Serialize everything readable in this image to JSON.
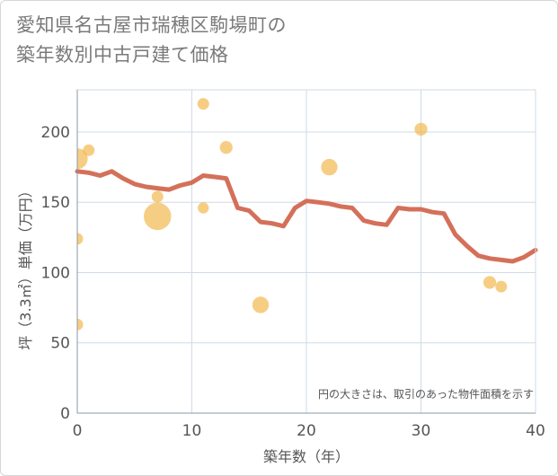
{
  "title_line1": "愛知県名古屋市瑞穂区駒場町の",
  "title_line2": "築年数別中古戸建て価格",
  "chart_data": {
    "type": "scatter",
    "title": "愛知県名古屋市瑞穂区駒場町の築年数別中古戸建て価格",
    "xlabel": "築年数（年）",
    "ylabel": "坪（3.3㎡）単価（万円）",
    "xlim": [
      0,
      40
    ],
    "ylim": [
      0,
      230
    ],
    "xticks": [
      0,
      10,
      20,
      30,
      40
    ],
    "yticks": [
      0,
      50,
      100,
      150,
      200
    ],
    "grid": true,
    "annotation": "円の大きさは、取引のあった物件面積を示す",
    "colors": {
      "bubble": "#f2b94f",
      "line": "#d4705a",
      "grid": "#cfdbe6"
    },
    "bubbles": [
      {
        "x": 0,
        "y": 181,
        "size": 3.2
      },
      {
        "x": 0,
        "y": 124,
        "size": 1.0
      },
      {
        "x": 0,
        "y": 63,
        "size": 1.0
      },
      {
        "x": 1,
        "y": 187,
        "size": 1.0
      },
      {
        "x": 7,
        "y": 140,
        "size": 5.5
      },
      {
        "x": 7,
        "y": 154,
        "size": 1.0
      },
      {
        "x": 11,
        "y": 220,
        "size": 1.0
      },
      {
        "x": 11,
        "y": 146,
        "size": 0.9
      },
      {
        "x": 13,
        "y": 189,
        "size": 1.2
      },
      {
        "x": 16,
        "y": 77,
        "size": 2.0
      },
      {
        "x": 22,
        "y": 175,
        "size": 2.0
      },
      {
        "x": 30,
        "y": 202,
        "size": 1.2
      },
      {
        "x": 36,
        "y": 93,
        "size": 1.2
      },
      {
        "x": 37,
        "y": 90,
        "size": 1.0
      }
    ],
    "trend": {
      "x": [
        0,
        1,
        2,
        3,
        4,
        5,
        6,
        7,
        8,
        9,
        10,
        11,
        12,
        13,
        14,
        15,
        16,
        17,
        18,
        19,
        20,
        21,
        22,
        23,
        24,
        25,
        26,
        27,
        28,
        29,
        30,
        31,
        32,
        33,
        34,
        35,
        36,
        37,
        38,
        39,
        40
      ],
      "y": [
        172,
        171,
        169,
        172,
        167,
        163,
        161,
        160,
        159,
        162,
        164,
        169,
        168,
        167,
        146,
        144,
        136,
        135,
        133,
        146,
        151,
        150,
        149,
        147,
        146,
        137,
        135,
        134,
        146,
        145,
        145,
        143,
        142,
        127,
        119,
        112,
        110,
        109,
        108,
        111,
        116
      ]
    }
  }
}
